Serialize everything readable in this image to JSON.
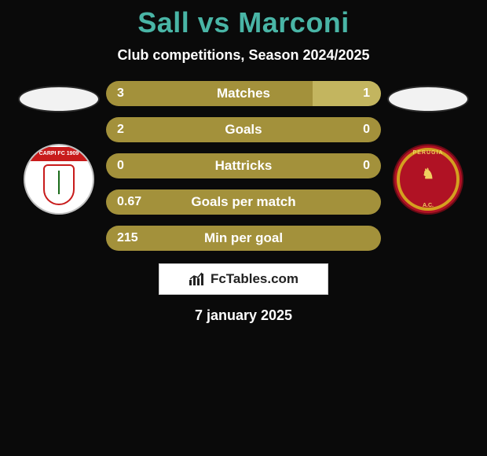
{
  "background_color": "#0a0a0a",
  "title": {
    "text": "Sall vs Marconi",
    "color": "#49b5a6",
    "fontsize": 36
  },
  "subtitle": {
    "text": "Club competitions, Season 2024/2025",
    "color": "#ffffff",
    "fontsize": 18
  },
  "left_player": {
    "flag_bg": "#f2f2f2",
    "crest_label_top": "CARPI FC 1909",
    "crest_bg": "#ffffff",
    "crest_accent": "#c81b1b"
  },
  "right_player": {
    "flag_bg": "#f2f2f2",
    "crest_label_top": "PERUGIA",
    "crest_label_bot": "A.C.",
    "crest_bg": "#b01224",
    "crest_accent": "#d4a020"
  },
  "bar_style": {
    "height": 32,
    "radius": 16,
    "gap": 14,
    "left_color": "#a3913b",
    "right_color": "#c3b55f",
    "neutral_color": "#a3913b",
    "text_color": "#ffffff",
    "value_fontsize": 16,
    "label_fontsize": 17
  },
  "bars": [
    {
      "label": "Matches",
      "left": "3",
      "right": "1",
      "left_pct": 75,
      "right_pct": 25
    },
    {
      "label": "Goals",
      "left": "2",
      "right": "0",
      "left_pct": 100,
      "right_pct": 0,
      "right_muted": true
    },
    {
      "label": "Hattricks",
      "left": "0",
      "right": "0",
      "left_pct": 50,
      "right_pct": 50,
      "neutral": true
    },
    {
      "label": "Goals per match",
      "left": "0.67",
      "right": "",
      "left_pct": 100,
      "right_pct": 0
    },
    {
      "label": "Min per goal",
      "left": "215",
      "right": "",
      "left_pct": 100,
      "right_pct": 0
    }
  ],
  "watermark": {
    "text": "FcTables.com",
    "bg": "#ffffff",
    "border": "#c9c9c9"
  },
  "date": {
    "text": "7 january 2025",
    "color": "#ffffff",
    "fontsize": 18
  }
}
